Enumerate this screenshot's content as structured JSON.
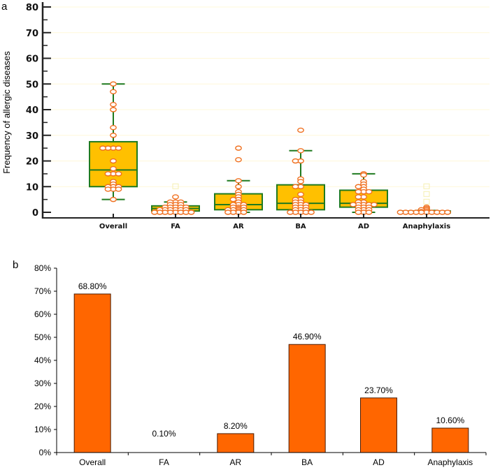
{
  "chart_data": [
    {
      "panel": "a",
      "type": "box",
      "ylabel": "Frequency of allergic diseases",
      "xlabel": "",
      "ylim": [
        0,
        80
      ],
      "yticks": [
        "0",
        "10",
        "20",
        "30",
        "40",
        "50",
        "60",
        "70",
        "80"
      ],
      "categories": [
        "Overall",
        "FA",
        "AR",
        "BA",
        "AD",
        "Anaphylaxis"
      ],
      "grid": true,
      "colors": {
        "box_fill": "#FFC000",
        "box_stroke": "#1F7A1F",
        "point_stroke": "#F07020",
        "point_fill": "#FFFFFF",
        "grid": "#FFF8D8"
      },
      "boxes": [
        {
          "name": "Overall",
          "whisker_low": 5,
          "q1": 10,
          "median": 16.5,
          "q3": 27.5,
          "whisker_high": 50,
          "points": [
            50,
            47,
            42,
            40,
            33,
            30,
            25,
            25,
            25,
            25,
            20,
            17,
            15,
            15,
            15,
            12,
            11,
            10,
            10,
            10,
            9,
            9,
            9,
            5
          ]
        },
        {
          "name": "FA",
          "whisker_low": 0,
          "q1": 0.5,
          "median": 1.5,
          "q3": 2.5,
          "whisker_high": 4,
          "points": [
            6,
            4,
            4,
            4,
            3,
            3,
            3,
            2,
            2,
            2,
            2,
            2,
            1,
            1,
            1,
            1,
            1,
            1,
            0,
            0,
            0,
            0,
            0,
            0,
            0,
            0
          ],
          "outliers": [
            10
          ]
        },
        {
          "name": "AR",
          "whisker_low": 0,
          "q1": 1,
          "median": 3,
          "q3": 7.2,
          "whisker_high": 12.3,
          "points": [
            25,
            20.5,
            12.3,
            10,
            8,
            7,
            6,
            5,
            5,
            4,
            3,
            3,
            3,
            2,
            2,
            2,
            1.5,
            1,
            1,
            1,
            1,
            0.5,
            0,
            0,
            0,
            0
          ]
        },
        {
          "name": "BA",
          "whisker_low": 0,
          "q1": 1,
          "median": 3.5,
          "q3": 10.7,
          "whisker_high": 24,
          "points": [
            32,
            24,
            20,
            20,
            13,
            12,
            10,
            10,
            7,
            5,
            5,
            4,
            4,
            3,
            3,
            3,
            2,
            2,
            2,
            1,
            1,
            1,
            0,
            0,
            0,
            0,
            0
          ]
        },
        {
          "name": "AD",
          "whisker_low": 0,
          "q1": 2,
          "median": 3.5,
          "q3": 8.6,
          "whisker_high": 15,
          "points": [
            15,
            14.5,
            12,
            11,
            10,
            10,
            9,
            8,
            8,
            8,
            6,
            6,
            4,
            4,
            3,
            3,
            3,
            3,
            3,
            2,
            2,
            2,
            1,
            1,
            1,
            0,
            0,
            0
          ]
        },
        {
          "name": "Anaphylaxis",
          "whisker_low": 0,
          "q1": 0,
          "median": 0.2,
          "q3": 0.5,
          "whisker_high": 0.7,
          "points": [
            2,
            1.5,
            1,
            1,
            0.5,
            0.3,
            0,
            0,
            0,
            0,
            0,
            0,
            0,
            0,
            0,
            0
          ],
          "outliers": [
            10,
            7,
            4
          ]
        }
      ]
    },
    {
      "panel": "b",
      "type": "bar",
      "xlabel": "",
      "ylabel": "",
      "ylim": [
        0,
        80
      ],
      "yticks": [
        "0%",
        "10%",
        "20%",
        "30%",
        "40%",
        "50%",
        "60%",
        "70%",
        "80%"
      ],
      "categories": [
        "Overall",
        "FA",
        "AR",
        "BA",
        "AD",
        "Anaphylaxis"
      ],
      "values": [
        68.8,
        0.1,
        8.2,
        46.9,
        23.7,
        10.6
      ],
      "data_labels": [
        "68.80%",
        "0.10%",
        "8.20%",
        "46.90%",
        "23.70%",
        "10.60%"
      ],
      "colors": {
        "bar": "#FF6600",
        "bar_stroke": "#4A1C00"
      },
      "grid": false
    }
  ],
  "panel_labels": {
    "a": "a",
    "b": "b"
  }
}
